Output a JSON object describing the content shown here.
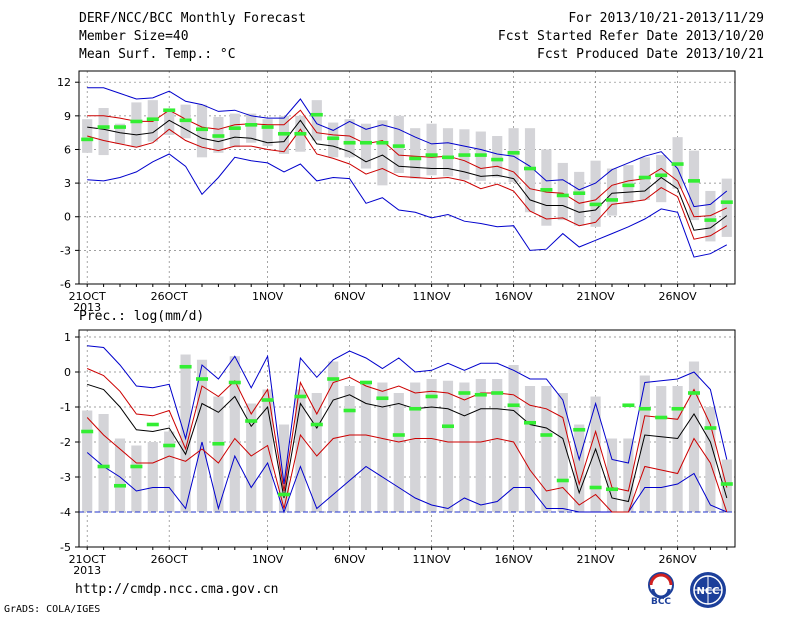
{
  "header": {
    "title": "DERF/NCC/BCC Monthly Forecast",
    "member_size": "Member Size=40",
    "variable": "Mean Surf. Temp.: °C",
    "period": "For 2013/10/21-2013/11/29",
    "started": "Fcst Started Refer Date 2013/10/20",
    "produced": "Fcst Produced Date 2013/10/21"
  },
  "footer": {
    "url": "http://cmdp.ncc.cma.gov.cn",
    "grads": "GrADS: COLA/IGES",
    "logo_bcc": "BCC",
    "logo_ncc": "NCC"
  },
  "colors": {
    "ensemble_mean": "#000000",
    "percentile_band": "#cc0000",
    "extremes": "#0000cc",
    "box": "#d4d4d8",
    "marker": "#33ee33",
    "grid": "#808080"
  },
  "chart_data": [
    {
      "type": "line",
      "title": "Mean Surf. Temp.: °C",
      "xlabel_year": "2013",
      "x_tick_labels": [
        "21OCT",
        "26OCT",
        "1NOV",
        "6NOV",
        "11NOV",
        "16NOV",
        "21NOV",
        "26NOV"
      ],
      "x_tick_days": [
        1,
        6,
        12,
        17,
        22,
        27,
        32,
        37
      ],
      "xlim": [
        0.5,
        40.5
      ],
      "ylim": [
        -6,
        13
      ],
      "y_ticks": [
        -6,
        -3,
        0,
        3,
        6,
        9,
        12
      ],
      "grid": true,
      "days": [
        1,
        2,
        3,
        4,
        5,
        6,
        7,
        8,
        9,
        10,
        11,
        12,
        13,
        14,
        15,
        16,
        17,
        18,
        19,
        20,
        21,
        22,
        23,
        24,
        25,
        26,
        27,
        28,
        29,
        30,
        31,
        32,
        33,
        34,
        35,
        36,
        37,
        38,
        39,
        40
      ],
      "series": [
        {
          "name": "max",
          "values": [
            11.5,
            11.5,
            11,
            10.5,
            10.6,
            11.2,
            10.3,
            10,
            9.4,
            9.5,
            9,
            8.8,
            8.8,
            10.5,
            8.3,
            7.7,
            8.5,
            7.8,
            8.2,
            7.8,
            7.1,
            6.5,
            6.6,
            6.3,
            6,
            5.6,
            5.4,
            4.5,
            3.2,
            3.3,
            2.4,
            3,
            4.2,
            4.8,
            5.4,
            5.8,
            4.3,
            0.9,
            1.1,
            2.3
          ]
        },
        {
          "name": "p75",
          "values": [
            9,
            9,
            8.8,
            8.5,
            8.5,
            9.5,
            8.7,
            8,
            7.8,
            8.2,
            8.3,
            8.2,
            8.2,
            9.5,
            7.5,
            7.3,
            7.2,
            6.5,
            6.8,
            5.5,
            5.4,
            5.3,
            5.4,
            5,
            4.3,
            4.5,
            4,
            2.5,
            2.2,
            2.1,
            1.2,
            1.5,
            2.8,
            3.2,
            3.4,
            4.3,
            3.2,
            0,
            0.1,
            0.8
          ]
        },
        {
          "name": "mean",
          "values": [
            8,
            7.8,
            7.5,
            7.3,
            7.5,
            8.6,
            7.8,
            7,
            6.7,
            7.1,
            7,
            6.6,
            6.7,
            8.6,
            6.5,
            6.3,
            5.8,
            4.9,
            5.5,
            4.5,
            4.4,
            4.3,
            4.3,
            4,
            3.6,
            3.7,
            3.4,
            1.5,
            1,
            1,
            0.4,
            0.6,
            2.1,
            2.2,
            2.3,
            3.5,
            2.5,
            -1.2,
            -1,
            0.1
          ]
        },
        {
          "name": "p25",
          "values": [
            7.2,
            6.8,
            6.5,
            6.2,
            6.6,
            7.8,
            6.8,
            6.2,
            5.9,
            6.3,
            6.3,
            6,
            5.8,
            7.8,
            5.6,
            5.2,
            4.7,
            3.8,
            4.3,
            3.6,
            3.5,
            3.4,
            3.5,
            3.2,
            2.5,
            2.9,
            2.3,
            0.5,
            -0.2,
            -0.1,
            -0.8,
            -0.5,
            1.1,
            1.3,
            1.5,
            2.6,
            1.8,
            -2,
            -1.7,
            -0.8
          ]
        },
        {
          "name": "min",
          "values": [
            3.3,
            3.2,
            3.5,
            4,
            4.9,
            5.6,
            4.5,
            2,
            3.5,
            5.3,
            5,
            4.8,
            4,
            4.7,
            3.2,
            3.5,
            3.4,
            1.2,
            1.7,
            0.6,
            0.4,
            -0.1,
            0.2,
            -0.4,
            -0.6,
            -0.9,
            -0.8,
            -3,
            -2.9,
            -1.5,
            -2.7,
            -2.1,
            -1.5,
            -0.9,
            -0.2,
            0.7,
            0.4,
            -3.6,
            -3.3,
            -2.5
          ]
        },
        {
          "name": "forecast",
          "values": [
            6.9,
            8,
            8,
            8.5,
            8.7,
            9.5,
            8.6,
            7.8,
            7.2,
            7.9,
            8.2,
            8,
            7.4,
            7.4,
            9.1,
            7,
            6.6,
            6.6,
            6.6,
            6.3,
            5.2,
            5.5,
            5.3,
            5.5,
            5.5,
            5.1,
            5.7,
            4.3,
            2.4,
            1.9,
            2.1,
            1.1,
            1.5,
            2.8,
            3.5,
            3.7,
            4.7,
            3.2,
            -0.3,
            1.3
          ]
        },
        {
          "name": "box_top",
          "values": [
            8.7,
            9.7,
            8.3,
            10.2,
            10.4,
            9.4,
            10,
            10,
            8.9,
            9.2,
            9.2,
            8.7,
            9,
            9,
            10.4,
            8.4,
            8.7,
            8.3,
            8.6,
            9,
            7.9,
            8.3,
            7.9,
            7.8,
            7.6,
            7.2,
            7.9,
            7.9,
            6,
            4.8,
            4,
            5,
            4.3,
            4.6,
            5.3,
            5.5,
            7.1,
            5.9,
            2.3,
            3.4
          ]
        },
        {
          "name": "box_bottom",
          "values": [
            5.7,
            5.5,
            6.5,
            6.2,
            6.7,
            7.3,
            7,
            5.3,
            5.7,
            6.2,
            6.6,
            6.3,
            5.6,
            5.8,
            6.8,
            5.3,
            5.3,
            4.3,
            2.8,
            3.9,
            3.4,
            3.7,
            3.6,
            3.3,
            3.2,
            3.5,
            3.1,
            0.4,
            -0.8,
            -0.3,
            -0.8,
            -0.9,
            0.1,
            1.2,
            1.5,
            1.3,
            2.5,
            -0.3,
            -2.2,
            -1.8
          ]
        }
      ]
    },
    {
      "type": "line",
      "title": "Prec.: log(mm/d)",
      "xlabel_year": "2013",
      "x_tick_labels": [
        "21OCT",
        "26OCT",
        "1NOV",
        "6NOV",
        "11NOV",
        "16NOV",
        "21NOV",
        "26NOV"
      ],
      "x_tick_days": [
        1,
        6,
        12,
        17,
        22,
        27,
        32,
        37
      ],
      "xlim": [
        0.5,
        40.5
      ],
      "ylim": [
        -5,
        1.2
      ],
      "y_ticks": [
        -5,
        -4,
        -3,
        -2,
        -1,
        0,
        1
      ],
      "baseline": -4,
      "grid": true,
      "days": [
        1,
        2,
        3,
        4,
        5,
        6,
        7,
        8,
        9,
        10,
        11,
        12,
        13,
        14,
        15,
        16,
        17,
        18,
        19,
        20,
        21,
        22,
        23,
        24,
        25,
        26,
        27,
        28,
        29,
        30,
        31,
        32,
        33,
        34,
        35,
        36,
        37,
        38,
        39,
        40
      ],
      "series": [
        {
          "name": "max",
          "values": [
            0.75,
            0.7,
            0.2,
            -0.4,
            -0.45,
            -0.35,
            -1.9,
            0.2,
            -0.2,
            0.45,
            -0.45,
            0.45,
            -3.2,
            0.4,
            -0.15,
            0.35,
            0.6,
            0.4,
            0.1,
            0.4,
            0.0,
            0.05,
            0.25,
            0.05,
            0.25,
            0.25,
            0.05,
            -0.2,
            -0.2,
            -0.8,
            -2.5,
            -0.9,
            -2.5,
            -2.6,
            -0.3,
            -0.25,
            -0.2,
            0.0,
            -0.5,
            -2.5
          ]
        },
        {
          "name": "p75",
          "values": [
            0.1,
            -0.1,
            -0.55,
            -1.2,
            -1.25,
            -1.1,
            -2.2,
            -0.4,
            -0.7,
            -0.25,
            -1.2,
            -0.5,
            -3.4,
            -0.3,
            -1.2,
            -0.3,
            -0.15,
            -0.4,
            -0.55,
            -0.4,
            -0.6,
            -0.55,
            -0.6,
            -0.8,
            -0.6,
            -0.6,
            -0.65,
            -0.95,
            -1.05,
            -1.3,
            -3.2,
            -1.7,
            -3.3,
            -3.4,
            -1.25,
            -1.3,
            -1.35,
            -0.5,
            -1.5,
            -3.3
          ]
        },
        {
          "name": "mean",
          "values": [
            -0.35,
            -0.5,
            -1.0,
            -1.65,
            -1.7,
            -1.6,
            -2.35,
            -0.9,
            -1.15,
            -0.7,
            -1.55,
            -1.0,
            -3.6,
            -0.9,
            -1.6,
            -0.8,
            -0.65,
            -0.9,
            -1.0,
            -0.9,
            -1.05,
            -1.0,
            -1.05,
            -1.25,
            -1.05,
            -1.05,
            -1.1,
            -1.5,
            -1.6,
            -1.9,
            -3.45,
            -2.2,
            -3.6,
            -3.7,
            -1.8,
            -1.85,
            -1.9,
            -1.2,
            -2.0,
            -3.6
          ]
        },
        {
          "name": "p25",
          "values": [
            -1.3,
            -1.8,
            -2.2,
            -2.6,
            -2.6,
            -2.4,
            -2.55,
            -2.2,
            -2.6,
            -1.9,
            -2.4,
            -2.1,
            -3.9,
            -1.8,
            -2.4,
            -1.9,
            -1.8,
            -1.8,
            -1.9,
            -2.0,
            -1.9,
            -1.9,
            -2.0,
            -2.0,
            -2.0,
            -1.9,
            -2.0,
            -2.8,
            -3.4,
            -3.3,
            -3.8,
            -3.5,
            -4.0,
            -4.0,
            -2.7,
            -2.8,
            -2.9,
            -1.9,
            -2.6,
            -4.0
          ]
        },
        {
          "name": "min",
          "values": [
            -2.3,
            -2.7,
            -3.0,
            -3.4,
            -3.3,
            -3.3,
            -3.9,
            -2.0,
            -3.9,
            -2.4,
            -3.3,
            -2.6,
            -4.0,
            -2.7,
            -3.9,
            -3.5,
            -3.1,
            -2.7,
            -3.0,
            -3.3,
            -3.6,
            -3.8,
            -3.9,
            -3.6,
            -3.8,
            -3.7,
            -3.3,
            -3.3,
            -3.9,
            -3.9,
            -4.0,
            -4.0,
            -4.0,
            -4.0,
            -3.3,
            -3.3,
            -3.2,
            -2.9,
            -3.8,
            -4.0
          ]
        },
        {
          "name": "forecast",
          "values": [
            -1.7,
            -2.7,
            -3.25,
            -2.7,
            -1.5,
            -2.1,
            0.15,
            -0.2,
            -2.05,
            -0.3,
            -1.4,
            -0.8,
            -3.5,
            -0.7,
            -1.5,
            -0.2,
            -1.1,
            -0.3,
            -0.75,
            -1.8,
            -1.05,
            -0.7,
            -1.55,
            -0.6,
            -0.65,
            -0.6,
            -0.95,
            -1.45,
            -1.8,
            -3.1,
            -1.65,
            -3.3,
            -3.35,
            -0.95,
            -1.05,
            -1.3,
            -1.05,
            -0.6,
            -1.6,
            -3.2
          ]
        },
        {
          "name": "box_top",
          "values": [
            -1.1,
            -1.2,
            -1.9,
            -2.1,
            -2.0,
            -1.7,
            0.5,
            0.35,
            -0.7,
            0.45,
            -0.9,
            -0.5,
            -1.5,
            -0.5,
            -0.6,
            0.3,
            -0.4,
            -0.25,
            -0.3,
            -0.6,
            -0.3,
            -0.2,
            -0.25,
            -0.3,
            -0.2,
            -0.2,
            0.2,
            -0.4,
            -0.4,
            -0.6,
            -1.5,
            -0.7,
            -1.9,
            -1.9,
            -0.1,
            -0.4,
            -0.4,
            0.3,
            -1.0,
            -2.5
          ]
        },
        {
          "name": "box_bottom",
          "values": [
            -4,
            -4,
            -4,
            -4,
            -4,
            -4,
            -4,
            -4,
            -4,
            -4,
            -4,
            -4,
            -4,
            -4,
            -4,
            -4,
            -4,
            -4,
            -4,
            -4,
            -4,
            -4,
            -4,
            -4,
            -4,
            -4,
            -4,
            -4,
            -4,
            -4,
            -4,
            -4,
            -4,
            -4,
            -4,
            -4,
            -4,
            -4,
            -4,
            -4
          ]
        }
      ]
    }
  ]
}
